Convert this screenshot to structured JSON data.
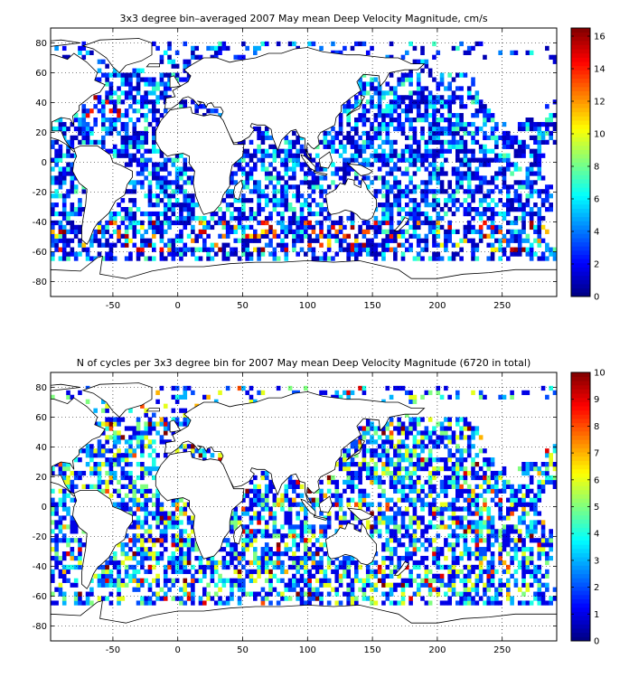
{
  "chart_data": [
    {
      "type": "heatmap",
      "title": "3x3 degree bin–averaged 2007 May mean Deep Velocity Magnitude, cm/s",
      "xlabel": "",
      "ylabel": "",
      "xlim": [
        -98,
        292
      ],
      "ylim": [
        -90,
        90
      ],
      "xticks": [
        -50,
        0,
        50,
        100,
        150,
        200,
        250
      ],
      "yticks": [
        -80,
        -60,
        -40,
        -20,
        0,
        20,
        40,
        60,
        80
      ],
      "grid": true,
      "colormap": "jet",
      "colorbar": {
        "min": 0,
        "max": 16.5,
        "ticks": [
          0,
          2,
          4,
          6,
          8,
          10,
          12,
          14,
          16
        ]
      },
      "bin_size_deg": 3,
      "value_distribution": "mostly 1-5 cm/s (blue); higher values (8-16 cm/s) near western boundary currents and Antarctic Circumpolar Current",
      "seed": 7
    },
    {
      "type": "heatmap",
      "title": "N of cycles per 3x3 degree bin for 2007 May mean Deep Velocity Magnitude (6720 in total)",
      "xlabel": "",
      "ylabel": "",
      "xlim": [
        -98,
        292
      ],
      "ylim": [
        -90,
        90
      ],
      "xticks": [
        -50,
        0,
        50,
        100,
        150,
        200,
        250
      ],
      "yticks": [
        -80,
        -60,
        -40,
        -20,
        0,
        20,
        40,
        60,
        80
      ],
      "grid": true,
      "colormap": "jet",
      "colorbar": {
        "min": 0,
        "max": 10,
        "ticks": [
          0,
          1,
          2,
          3,
          4,
          5,
          6,
          7,
          8,
          9,
          10
        ]
      },
      "bin_size_deg": 3,
      "total_cycles": 6720,
      "value_distribution": "mostly 1-4 cycles per bin, scattered bins with 5-10",
      "seed": 19
    }
  ],
  "colors": {
    "jet": [
      "#00008f",
      "#0000ff",
      "#0080ff",
      "#00ffff",
      "#80ff80",
      "#ffff00",
      "#ff8000",
      "#ff0000",
      "#800000"
    ],
    "land": "#ffffff",
    "coastline": "#000000",
    "grid": "#000000"
  }
}
